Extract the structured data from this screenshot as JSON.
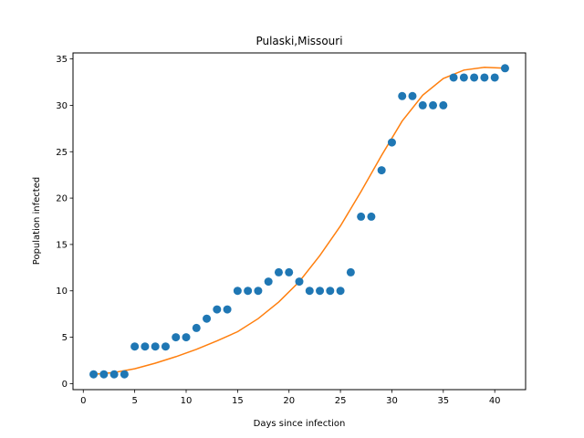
{
  "chart_data": {
    "type": "scatter",
    "title": "Pulaski,Missouri",
    "xlabel": "Days since infection",
    "ylabel": "Population infected",
    "xlim": [
      -1,
      43
    ],
    "ylim": [
      -0.65,
      35.65
    ],
    "xticks": [
      0,
      5,
      10,
      15,
      20,
      25,
      30,
      35,
      40
    ],
    "yticks": [
      0,
      5,
      10,
      15,
      20,
      25,
      30,
      35
    ],
    "grid": false,
    "series": [
      {
        "kind": "scatter",
        "color": "#1f77b4",
        "x": [
          1,
          2,
          3,
          4,
          5,
          6,
          7,
          8,
          9,
          10,
          11,
          12,
          13,
          14,
          15,
          16,
          17,
          18,
          19,
          20,
          21,
          22,
          23,
          24,
          25,
          26,
          27,
          28,
          29,
          30,
          31,
          32,
          33,
          34,
          35,
          36,
          37,
          38,
          39,
          40,
          41
        ],
        "y": [
          1,
          1,
          1,
          1,
          4,
          4,
          4,
          4,
          5,
          5,
          6,
          7,
          8,
          8,
          10,
          10,
          10,
          11,
          12,
          12,
          11,
          10,
          10,
          10,
          10,
          12,
          18,
          18,
          23,
          26,
          31,
          31,
          30,
          30,
          30,
          33,
          33,
          33,
          33,
          33,
          34
        ]
      },
      {
        "kind": "line",
        "color": "#ff7f0e",
        "x": [
          1,
          3,
          5,
          7,
          9,
          11,
          13,
          15,
          17,
          19,
          21,
          23,
          25,
          27,
          29,
          31,
          33,
          35,
          37,
          39,
          41
        ],
        "y": [
          1.0,
          1.2,
          1.6,
          2.2,
          2.9,
          3.7,
          4.6,
          5.6,
          7.0,
          8.8,
          11.0,
          13.8,
          17.0,
          20.7,
          24.6,
          28.3,
          31.1,
          32.9,
          33.8,
          34.1,
          34.0
        ]
      }
    ]
  }
}
